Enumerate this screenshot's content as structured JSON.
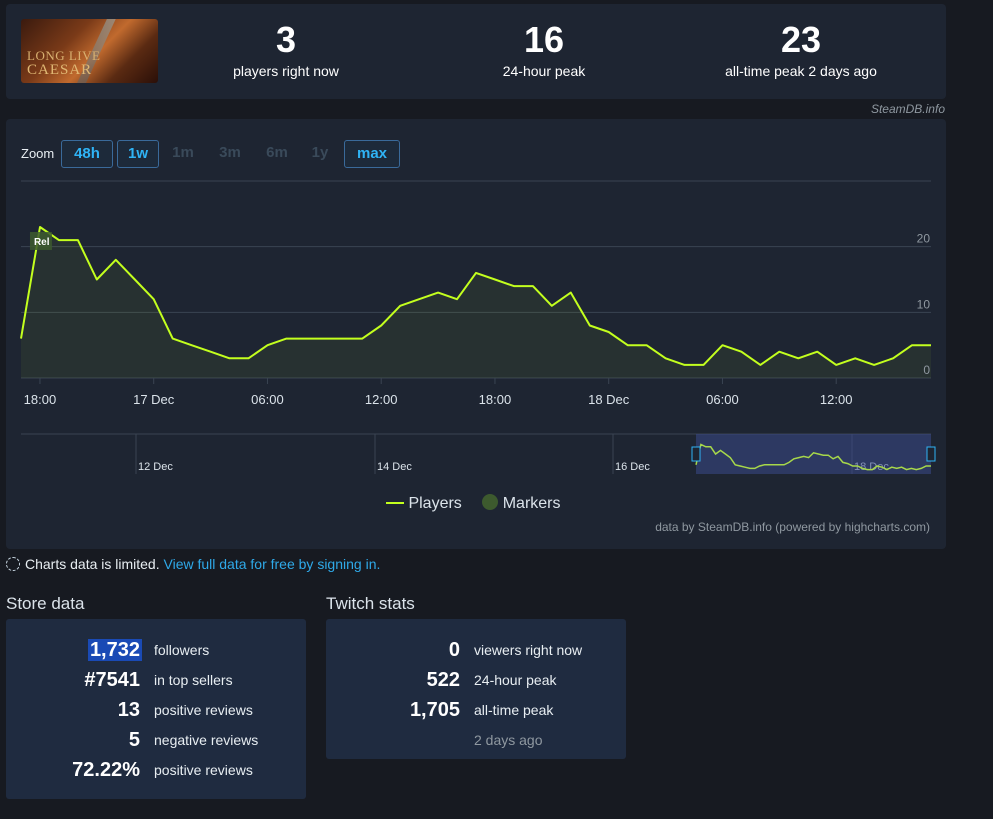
{
  "header": {
    "game_title_line1": "LONG LIVE",
    "game_title_line2": "CAESAR",
    "stats": [
      {
        "value": "3",
        "label": "players right now"
      },
      {
        "value": "16",
        "label": "24-hour peak"
      },
      {
        "value": "23",
        "label": "all-time peak 2 days ago"
      }
    ],
    "credit": "SteamDB.info"
  },
  "chart": {
    "zoom_label": "Zoom",
    "zoom_buttons": [
      "48h",
      "1w",
      "1m",
      "3m",
      "6m",
      "1y",
      "max"
    ],
    "zoom_active": [
      "48h",
      "1w",
      "max"
    ],
    "legend_players": "Players",
    "legend_markers": "Markers",
    "credit": "data by SteamDB.info (powered by highcharts.com)",
    "marker_label": "Rel",
    "colors": {
      "line": "#c3ff1e",
      "marker": "#3d5a2e",
      "navigator_mask": "#3a4a8a"
    }
  },
  "chart_data": {
    "type": "line",
    "series": [
      {
        "name": "Players",
        "values": [
          6,
          23,
          21,
          21,
          15,
          18,
          15,
          12,
          6,
          5,
          4,
          3,
          3,
          5,
          6,
          6,
          6,
          6,
          6,
          8,
          11,
          12,
          13,
          12,
          16,
          15,
          14,
          14,
          11,
          13,
          8,
          7,
          5,
          5,
          3,
          2,
          2,
          5,
          4,
          2,
          4,
          3,
          4,
          2,
          3,
          2,
          3,
          5,
          5
        ]
      }
    ],
    "x_tick_labels": [
      "18:00",
      "17 Dec",
      "06:00",
      "12:00",
      "18:00",
      "18 Dec",
      "06:00",
      "12:00"
    ],
    "y_tick_labels": [
      "0",
      "10",
      "20"
    ],
    "ylim": [
      0,
      30
    ],
    "navigator_labels": [
      "12 Dec",
      "14 Dec",
      "16 Dec",
      "18 Dec"
    ],
    "grid": true
  },
  "notice": {
    "text": "Charts data is limited.",
    "link": "View full data for free by signing in."
  },
  "store": {
    "title": "Store data",
    "rows": [
      {
        "value": "1,732",
        "label": "followers"
      },
      {
        "value": "#7541",
        "label": "in top sellers"
      },
      {
        "value": "13",
        "label": "positive reviews"
      },
      {
        "value": "5",
        "label": "negative reviews"
      },
      {
        "value": "72.22%",
        "label": "positive reviews"
      }
    ]
  },
  "twitch": {
    "title": "Twitch stats",
    "rows": [
      {
        "value": "0",
        "label": "viewers right now"
      },
      {
        "value": "522",
        "label": "24-hour peak"
      },
      {
        "value": "1,705",
        "label": "all-time peak"
      }
    ],
    "sub": "2 days ago"
  }
}
